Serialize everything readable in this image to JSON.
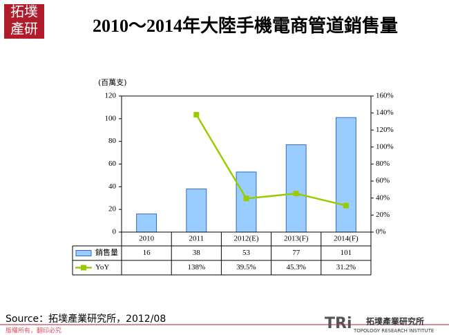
{
  "chart_data": {
    "type": "bar-line-table",
    "title": "2010～2014年大陸手機電商管道銷售量",
    "y_label": "(百萬支)",
    "categories": [
      "2010",
      "2011",
      "2012(E)",
      "2013(F)",
      "2014(F)"
    ],
    "series": [
      {
        "name": "銷售量",
        "type": "bar",
        "color": "#99ccff",
        "values": [
          16,
          38,
          53,
          77,
          101
        ]
      },
      {
        "name": "YoY",
        "type": "line",
        "axis": "y2",
        "color": "#99cc00",
        "values": [
          null,
          138,
          39.5,
          45.3,
          31.2
        ],
        "value_labels": [
          null,
          "138%",
          "39.5%",
          "45.3%",
          "31.2%"
        ]
      }
    ],
    "ylim": [
      0,
      120
    ],
    "yticks": [
      0,
      20,
      40,
      60,
      80,
      100,
      120
    ],
    "y2lim": [
      0,
      160
    ],
    "y2ticks": [
      {
        "value": 0,
        "label": "0%"
      },
      {
        "value": 20,
        "label": "20%"
      },
      {
        "value": 40,
        "label": "40%"
      },
      {
        "value": 60,
        "label": "60%"
      },
      {
        "value": 80,
        "label": "80%"
      },
      {
        "value": 100,
        "label": "100%"
      },
      {
        "value": 120,
        "label": "120%"
      },
      {
        "value": 140,
        "label": "140%"
      },
      {
        "value": 160,
        "label": "160%"
      }
    ]
  },
  "page": {
    "logo": [
      "拓墣",
      "產研"
    ],
    "source": "Source：拓墣產業研究所，2012/08",
    "copyright": "版權所有，翻印必究",
    "brand_mark": "TRi",
    "brand_name": "拓墣產業研究所",
    "brand_en": "TOPOLOGY RESEARCH INSTITUTE"
  }
}
